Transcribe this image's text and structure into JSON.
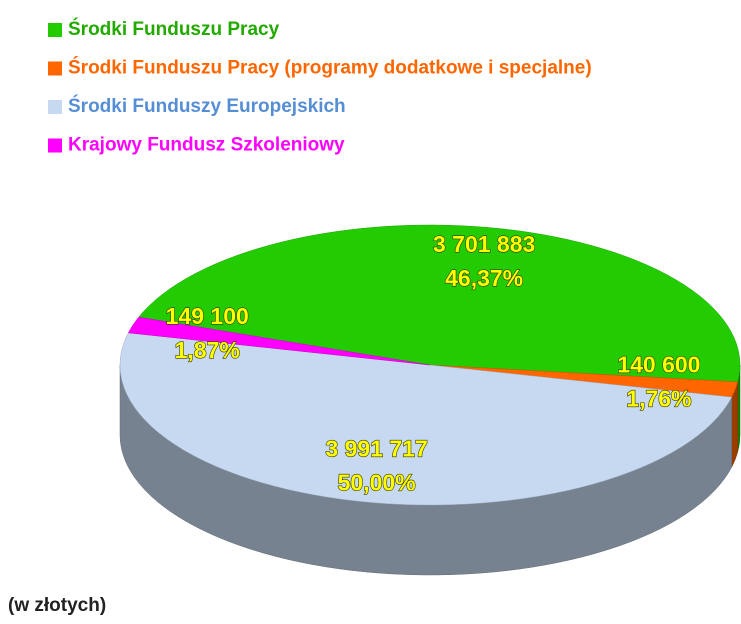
{
  "chart_data": {
    "type": "pie",
    "series": [
      {
        "name": "Środki Funduszu Pracy",
        "color": "#22cc00",
        "text_color": "#22aa00",
        "values": [
          3701883
        ],
        "value_labels": [
          "3 701 883"
        ],
        "percentages": [
          46.37
        ],
        "percentage_labels": [
          "46,37%"
        ]
      },
      {
        "name": "Środki Funduszu Pracy (programy dodatkowe i specjalne)",
        "color": "#ff6600",
        "text_color": "#ff6600",
        "values": [
          140600
        ],
        "value_labels": [
          "140 600"
        ],
        "percentages": [
          1.76
        ],
        "percentage_labels": [
          "1,76%"
        ]
      },
      {
        "name": "Środki Funduszy Europejskich",
        "color": "#c6d9f0",
        "text_color": "#558ed5",
        "values": [
          3991717
        ],
        "value_labels": [
          "3 991 717"
        ],
        "percentages": [
          50.0
        ],
        "percentage_labels": [
          "50,00%"
        ]
      },
      {
        "name": "Krajowy Fundusz Szkoleniowy",
        "color": "#ff00ff",
        "text_color": "#ff00ff",
        "values": [
          149100
        ],
        "value_labels": [
          "149 100"
        ],
        "percentages": [
          1.87
        ],
        "percentage_labels": [
          "1,87%"
        ]
      }
    ],
    "note": "(w złotych)"
  }
}
